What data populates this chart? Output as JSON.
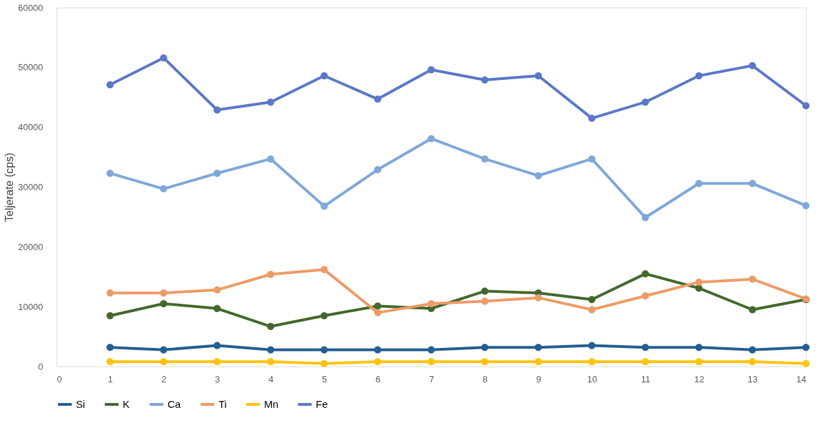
{
  "chart_data": {
    "type": "line",
    "ylabel": "Teljerate (cps)",
    "x": [
      1,
      2,
      3,
      4,
      5,
      6,
      7,
      8,
      9,
      10,
      11,
      12,
      13,
      14
    ],
    "xlim": [
      0,
      14
    ],
    "xticks": [
      0,
      1,
      2,
      3,
      4,
      5,
      6,
      7,
      8,
      9,
      10,
      11,
      12,
      13,
      14
    ],
    "ylim": [
      0,
      60000
    ],
    "yticks": [
      0,
      10000,
      20000,
      30000,
      40000,
      50000,
      60000
    ],
    "grid": false,
    "legend": "bottom",
    "marker": "circle",
    "line_style": "solid",
    "series": [
      {
        "name": "Si",
        "color": "#255e91",
        "values": [
          3200,
          2800,
          3500,
          2800,
          2800,
          2800,
          2800,
          3200,
          3200,
          3500,
          3200,
          3200,
          2800,
          3200
        ]
      },
      {
        "name": "K",
        "color": "#43682b",
        "values": [
          8500,
          10500,
          9700,
          6700,
          8500,
          10100,
          9700,
          12600,
          12300,
          11200,
          15500,
          13100,
          9500,
          11200
        ]
      },
      {
        "name": "Ca",
        "color": "#7fa7d9",
        "values": [
          32300,
          29700,
          32300,
          34700,
          26800,
          32900,
          38100,
          34700,
          31900,
          34700,
          24900,
          30600,
          30600,
          26900
        ]
      },
      {
        "name": "Ti",
        "color": "#ed9b66",
        "values": [
          12300,
          12300,
          12800,
          15400,
          16200,
          9000,
          10500,
          10900,
          11500,
          9500,
          11800,
          14100,
          14600,
          11300
        ]
      },
      {
        "name": "Mn",
        "color": "#ffc30f",
        "values": [
          800,
          800,
          800,
          800,
          500,
          800,
          800,
          800,
          800,
          800,
          800,
          800,
          800,
          500
        ]
      },
      {
        "name": "Fe",
        "color": "#5b78c8",
        "values": [
          47100,
          51600,
          42900,
          44200,
          48600,
          44700,
          49600,
          47900,
          48600,
          41500,
          44200,
          48600,
          50300,
          43600
        ]
      }
    ]
  }
}
